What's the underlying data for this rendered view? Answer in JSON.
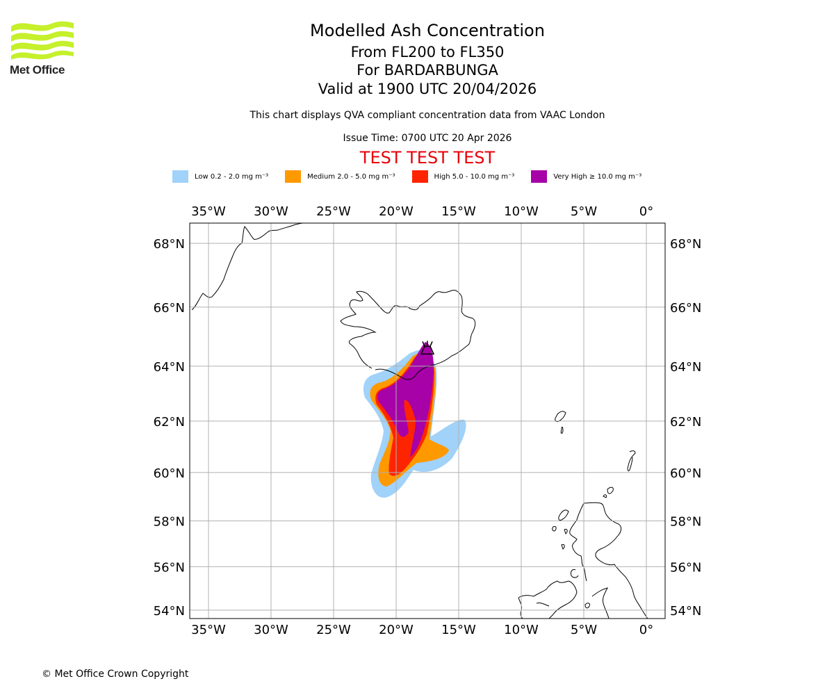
{
  "header": {
    "logo_label": "Met Office",
    "title": "Modelled Ash Concentration",
    "levels": "From FL200 to FL350",
    "volcano": "For BARDARBUNGA",
    "valid": "Valid at 1900 UTC 20/04/2026",
    "subtitle": "This chart displays QVA compliant concentration data from VAAC London",
    "issue": "Issue Time: 0700 UTC 20 Apr 2026",
    "test_banner": "TEST TEST TEST"
  },
  "legend": [
    {
      "label": "Low 0.2 - 2.0 mg m⁻³",
      "color": "#a0d2fa"
    },
    {
      "label": "Medium 2.0 - 5.0 mg m⁻³",
      "color": "#fe9900"
    },
    {
      "label": "High 5.0 - 10.0 mg m⁻³",
      "color": "#ff2400"
    },
    {
      "label": "Very High ≥ 10.0 mg m⁻³",
      "color": "#a701a8"
    }
  ],
  "map": {
    "lon_range": [
      -36.5,
      1.5
    ],
    "lat_range": [
      53.6,
      68.6
    ],
    "lon_ticks": [
      {
        "value": -35,
        "label": "35°W"
      },
      {
        "value": -30,
        "label": "30°W"
      },
      {
        "value": -25,
        "label": "25°W"
      },
      {
        "value": -20,
        "label": "20°W"
      },
      {
        "value": -15,
        "label": "15°W"
      },
      {
        "value": -10,
        "label": "10°W"
      },
      {
        "value": -5,
        "label": "5°W"
      },
      {
        "value": 0,
        "label": "0°"
      }
    ],
    "lat_ticks": [
      {
        "value": 68,
        "label": "68°N"
      },
      {
        "value": 66,
        "label": "66°N"
      },
      {
        "value": 64,
        "label": "64°N"
      },
      {
        "value": 62,
        "label": "62°N"
      },
      {
        "value": 60,
        "label": "60°N"
      },
      {
        "value": 58,
        "label": "58°N"
      },
      {
        "value": 56,
        "label": "56°N"
      },
      {
        "value": 54,
        "label": "54°N"
      }
    ],
    "volcano_marker": {
      "name": "Bardarbunga",
      "lon": -17.5,
      "lat": 64.64
    }
  },
  "footer": {
    "copyright": "© Met Office Crown Copyright"
  }
}
